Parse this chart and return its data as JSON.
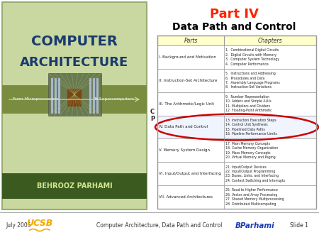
{
  "title_part": "Part IV",
  "title_sub": "Data Path and Control",
  "footer_left": "July 2005",
  "footer_center": "Computer Architecture, Data Path and Control",
  "footer_right": "Slide 1",
  "table_header": [
    "Parts",
    "Chapters"
  ],
  "table_rows": [
    {
      "part": "I. Background and Motivation",
      "chapters": "1.  Combinational Digital Circuits\n2.  Digital Circuits with Memory\n3.  Computer System Technology\n4.  Computer Performance"
    },
    {
      "part": "II. Instruction-Set Architecture",
      "chapters": "5.  Instructions and Addressing\n6.  Procedures and Data\n7.  Assembly Language Programs\n8.  Instruction-Set Variations"
    },
    {
      "part": "III. The Arithmetic/Logic Unit",
      "chapters": "9.  Number Representation\n10. Adders and Simple ALUs\n11. Multipliers and Dividers\n12. Floating-Point Arithmetic"
    },
    {
      "part": "IV. Data Path and Control",
      "chapters": "13. Instruction Execution Steps\n14. Control Unit Synthesis\n15. Pipelined Data Paths\n16. Pipeline Performance Limits"
    },
    {
      "part": "V. Memory System Design",
      "chapters": "17. Main Memory Concepts\n18. Cache Memory Organization\n19. Mass Memory Concepts\n20. Virtual Memory and Paging"
    },
    {
      "part": "VI. Input/Output and Interfacing",
      "chapters": "21. Input/Output Devices\n22. Input/Output Programming\n23. Buses, Links, and Interfacing\n24. Context Switching and Interrupts"
    },
    {
      "part": "VII. Advanced Architectures",
      "chapters": "25. Road to Higher Performance\n26. Vector and Array Processing\n27. Shared Memory Multiprocessing\n28. Distributed Multicomputing"
    }
  ],
  "highlighted_row": 3,
  "cp_label_rows": [
    2,
    3
  ],
  "bg_color": "#ffffff",
  "table_header_bg": "#ffffcc",
  "table_border": "#999999",
  "title_part_color": "#ff2200",
  "title_sub_color": "#000000",
  "highlight_ellipse_color": "#cc0000",
  "book_bg": "#c8d8a0",
  "book_title_color": "#1a3a6e",
  "footer_bg": "#e0e0e0",
  "footer_color": "#333333",
  "ucsb_color": "#f0a800",
  "parhami_color": "#1a3ab8",
  "book_band_color": "#7a8c40",
  "book_author_bg": "#3a5a20",
  "book_author_color": "#d4e890",
  "col_split": 0.42
}
